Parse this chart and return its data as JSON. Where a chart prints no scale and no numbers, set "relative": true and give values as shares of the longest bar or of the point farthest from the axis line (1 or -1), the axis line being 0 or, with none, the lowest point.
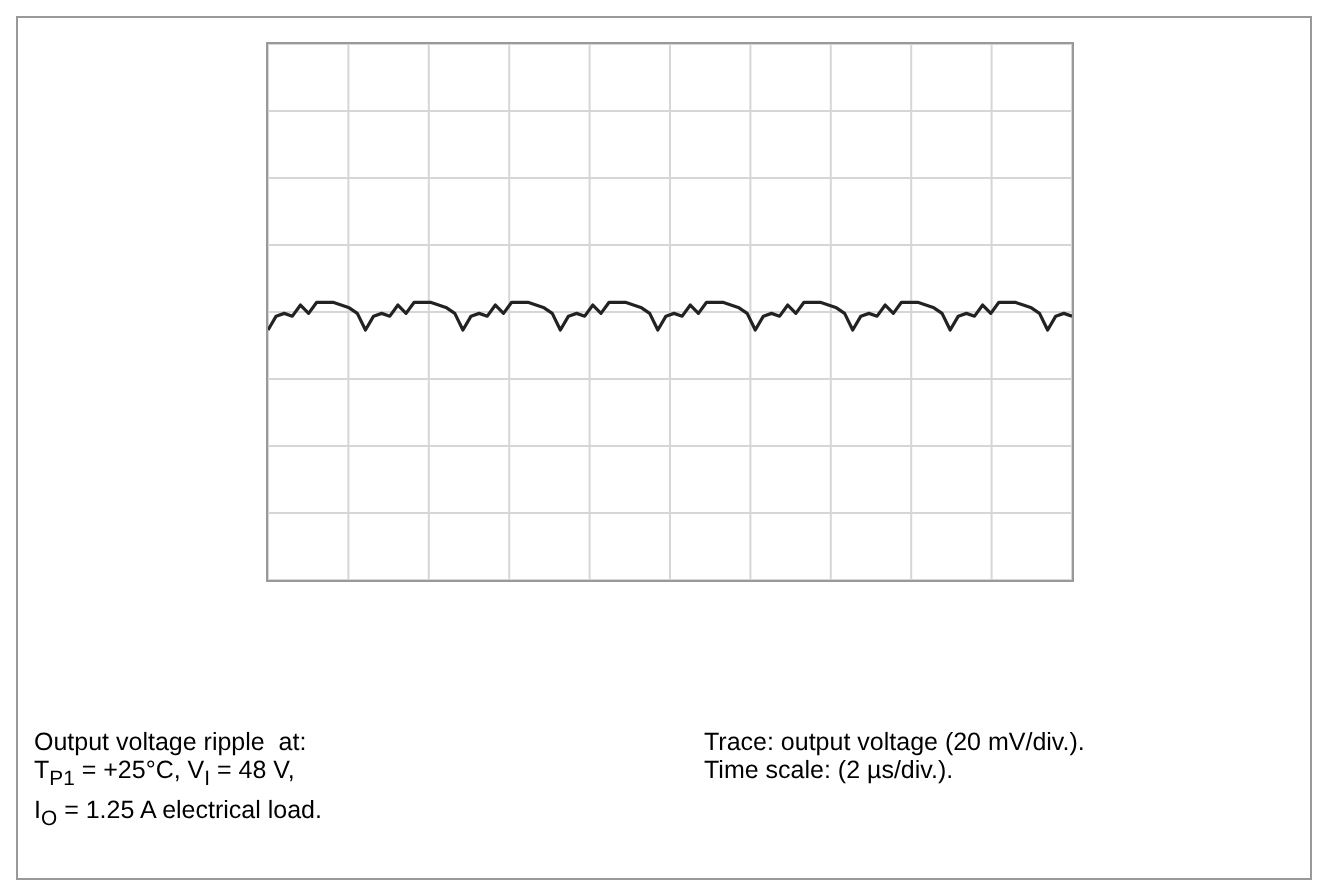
{
  "chart_data": {
    "type": "line",
    "relative": true,
    "grid": true,
    "marker": "none",
    "line_style": "solid",
    "categories": [
      null,
      null,
      null,
      null,
      null,
      null,
      null,
      null,
      null,
      null,
      null,
      null,
      null,
      null,
      null,
      null,
      null,
      null,
      null,
      null,
      null,
      null,
      null,
      null,
      null,
      null,
      null,
      null,
      null,
      null,
      null,
      null,
      null,
      null,
      null,
      null,
      null,
      null,
      null,
      null,
      null,
      null,
      null,
      null,
      null,
      null,
      null,
      null,
      null,
      null,
      null,
      null,
      null,
      null,
      null,
      null,
      null,
      null,
      null,
      null,
      null,
      null,
      null,
      null,
      null,
      null,
      null,
      null,
      null,
      null,
      null,
      null,
      null,
      null,
      null,
      null,
      null,
      null,
      null,
      null,
      null,
      null,
      null,
      null,
      null,
      null,
      null,
      null,
      null,
      null,
      null,
      null,
      null,
      null,
      null,
      null,
      null,
      null,
      null,
      null
    ],
    "series": [
      {
        "color": "#222222",
        "values": [
          0.9,
          0.95,
          0.96,
          0.95,
          0.99,
          0.96,
          1,
          1,
          1,
          0.99,
          0.98,
          0.96,
          0.9,
          0.95,
          0.96,
          0.95,
          0.99,
          0.96,
          1,
          1,
          1,
          0.99,
          0.98,
          0.96,
          0.9,
          0.95,
          0.96,
          0.95,
          0.99,
          0.96,
          1,
          1,
          1,
          0.99,
          0.98,
          0.96,
          0.9,
          0.95,
          0.96,
          0.95,
          0.99,
          0.96,
          1,
          1,
          1,
          0.99,
          0.98,
          0.96,
          0.9,
          0.95,
          0.96,
          0.95,
          0.99,
          0.96,
          1,
          1,
          1,
          0.99,
          0.98,
          0.96,
          0.9,
          0.95,
          0.96,
          0.95,
          0.99,
          0.96,
          1,
          1,
          1,
          0.99,
          0.98,
          0.96,
          0.9,
          0.95,
          0.96,
          0.95,
          0.99,
          0.96,
          1,
          1,
          1,
          0.99,
          0.98,
          0.96,
          0.9,
          0.95,
          0.96,
          0.95,
          0.99,
          0.96,
          1,
          1,
          1,
          0.99,
          0.98,
          0.96,
          0.9,
          0.95,
          0.96,
          0.95
        ]
      }
    ],
    "annotations": [
      "Output voltage ripple  at:\nT$_{P1}$ = +25°C, V$_{I}$ = 48 V,\nI$_{O}$ = 1.25 A electrical load.",
      "Trace: output voltage (20 mV/div.).\nTime scale: (2 µs/div.)."
    ]
  }
}
